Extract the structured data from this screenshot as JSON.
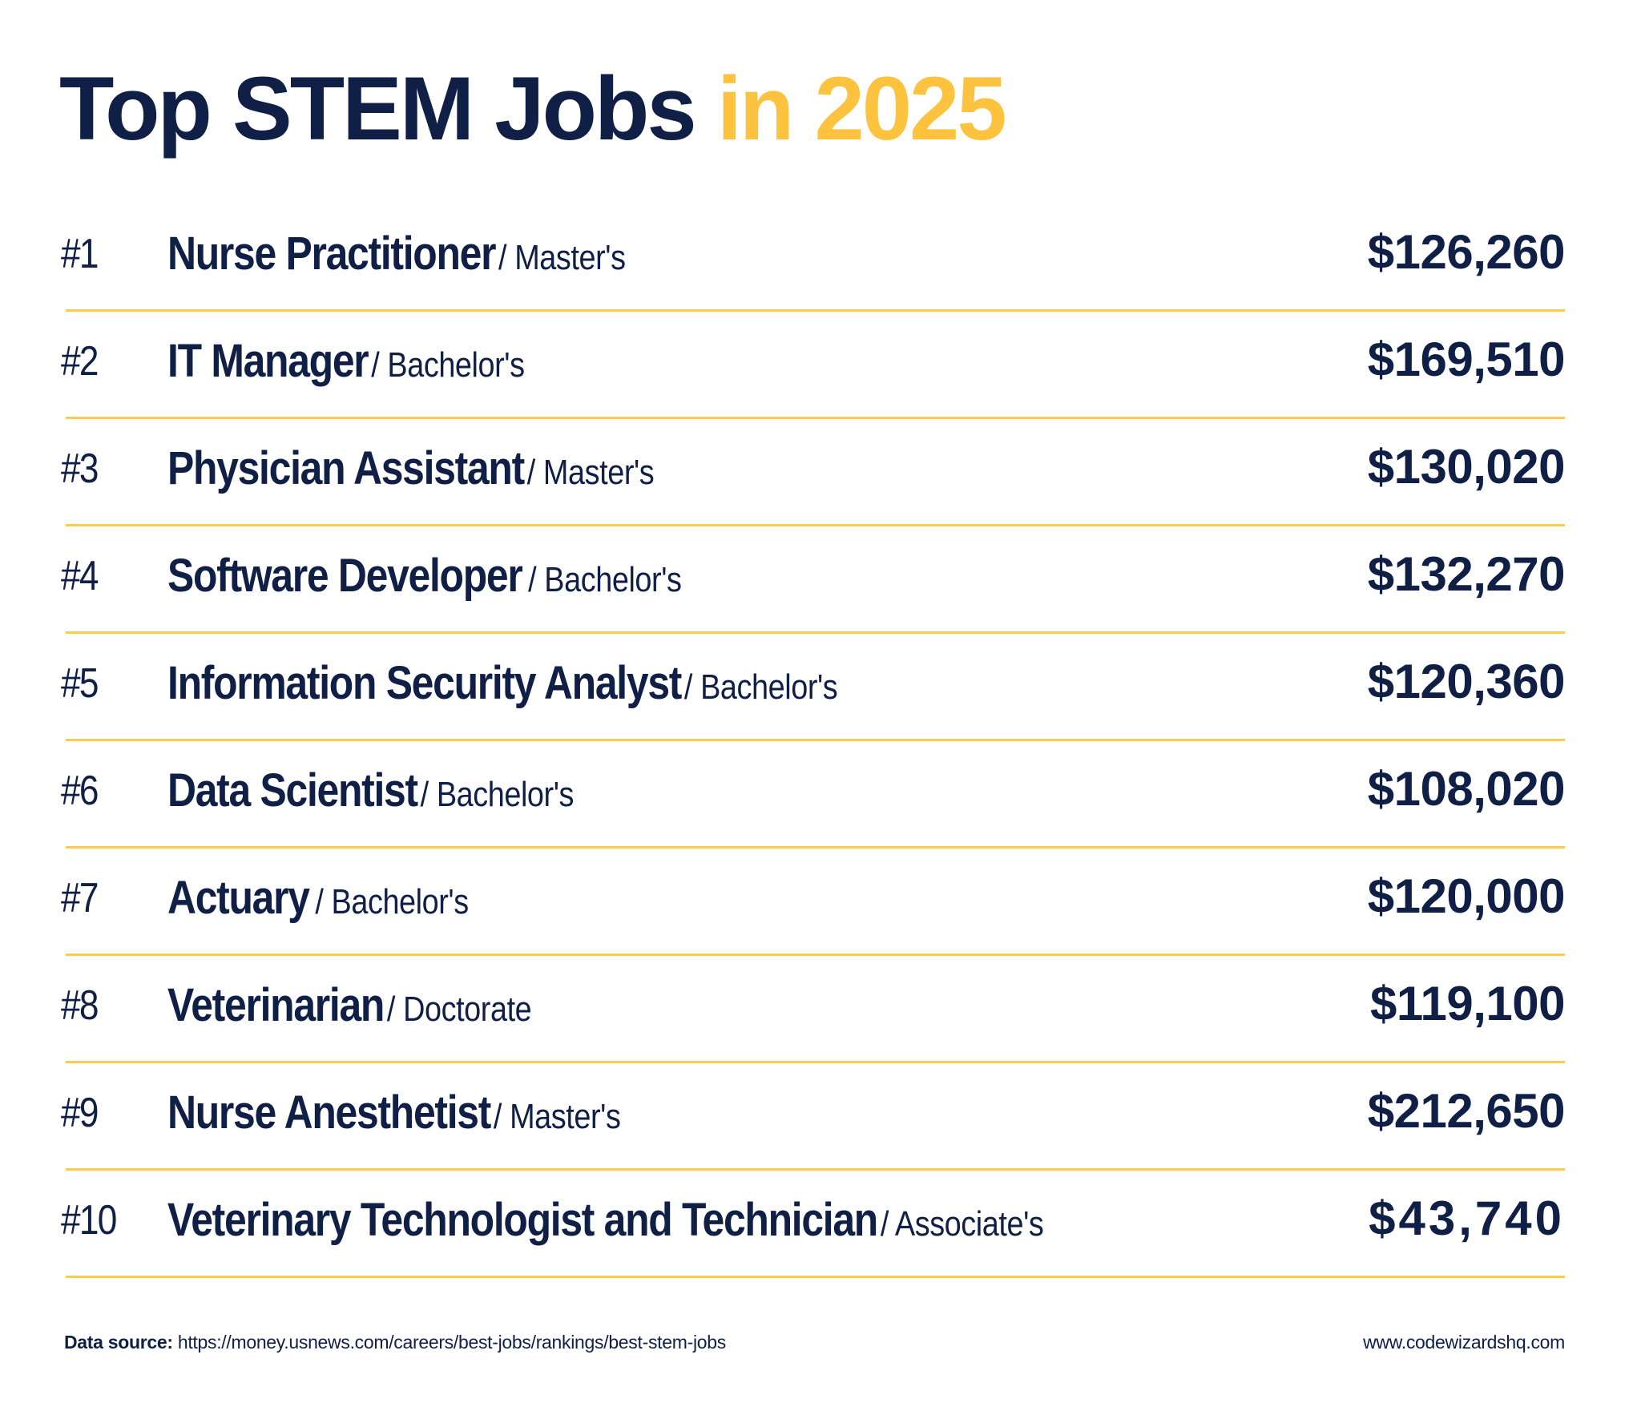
{
  "title": {
    "main": "Top STEM Jobs",
    "accent": "in 2025"
  },
  "colors": {
    "navy": "#0f1f45",
    "yellow": "#fdc33f",
    "divider": "#fdcb4a",
    "background": "#ffffff"
  },
  "jobs": [
    {
      "rank": "#1",
      "title": "Nurse Practitioner",
      "degree": "/ Master's",
      "salary": "$126,260"
    },
    {
      "rank": "#2",
      "title": "IT Manager",
      "degree": "/ Bachelor's",
      "salary": "$169,510"
    },
    {
      "rank": "#3",
      "title": "Physician Assistant",
      "degree": "/ Master's",
      "salary": "$130,020"
    },
    {
      "rank": "#4",
      "title": "Software Developer",
      "degree": "/ Bachelor's",
      "salary": "$132,270"
    },
    {
      "rank": "#5",
      "title": "Information Security Analyst",
      "degree": "/ Bachelor's",
      "salary": "$120,360"
    },
    {
      "rank": "#6",
      "title": "Data Scientist",
      "degree": "/ Bachelor's",
      "salary": "$108,020"
    },
    {
      "rank": "#7",
      "title": "Actuary",
      "degree": "/ Bachelor's",
      "salary": "$120,000"
    },
    {
      "rank": "#8",
      "title": "Veterinarian",
      "degree": "/ Doctorate",
      "salary": "$119,100"
    },
    {
      "rank": "#9",
      "title": "Nurse Anesthetist",
      "degree": "/ Master's",
      "salary": "$212,650"
    },
    {
      "rank": "#10",
      "title": "Veterinary Technologist and Technician",
      "degree": "/ Associate's",
      "salary": "$43,740"
    }
  ],
  "footer": {
    "source_label": "Data source:",
    "source_url": "https://money.usnews.com/careers/best-jobs/rankings/best-stem-jobs",
    "website": "www.codewizardshq.com"
  }
}
